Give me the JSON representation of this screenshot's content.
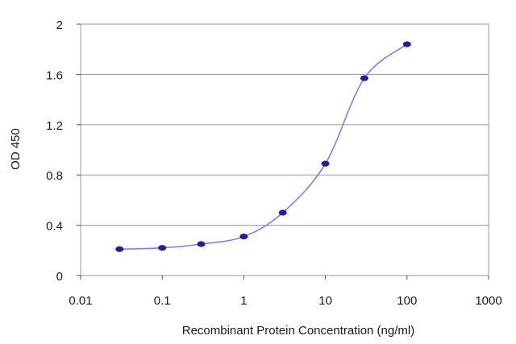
{
  "chart_data": {
    "type": "line",
    "xlabel": "Recombinant Protein Concentration (ng/ml)",
    "ylabel": "OD 450",
    "x_scale": "log",
    "xlim": [
      0.01,
      1000
    ],
    "ylim": [
      0,
      2
    ],
    "x_ticks": [
      "0.01",
      "0.1",
      "1",
      "10",
      "100",
      "1000"
    ],
    "y_ticks": [
      "0",
      "0.4",
      "0.8",
      "1.2",
      "1.6",
      "2"
    ],
    "grid": "horizontal",
    "legend": "none",
    "series": [
      {
        "x": [
          0.03,
          0.1,
          0.3,
          1,
          3,
          10,
          30,
          100
        ],
        "y": [
          0.21,
          0.22,
          0.25,
          0.31,
          0.5,
          0.89,
          1.57,
          1.84
        ]
      }
    ],
    "colors": {
      "line": "#8080e0",
      "marker": "#1f1f9a",
      "grid": "#a8a8a8",
      "frame": "#a8a8a8"
    }
  }
}
